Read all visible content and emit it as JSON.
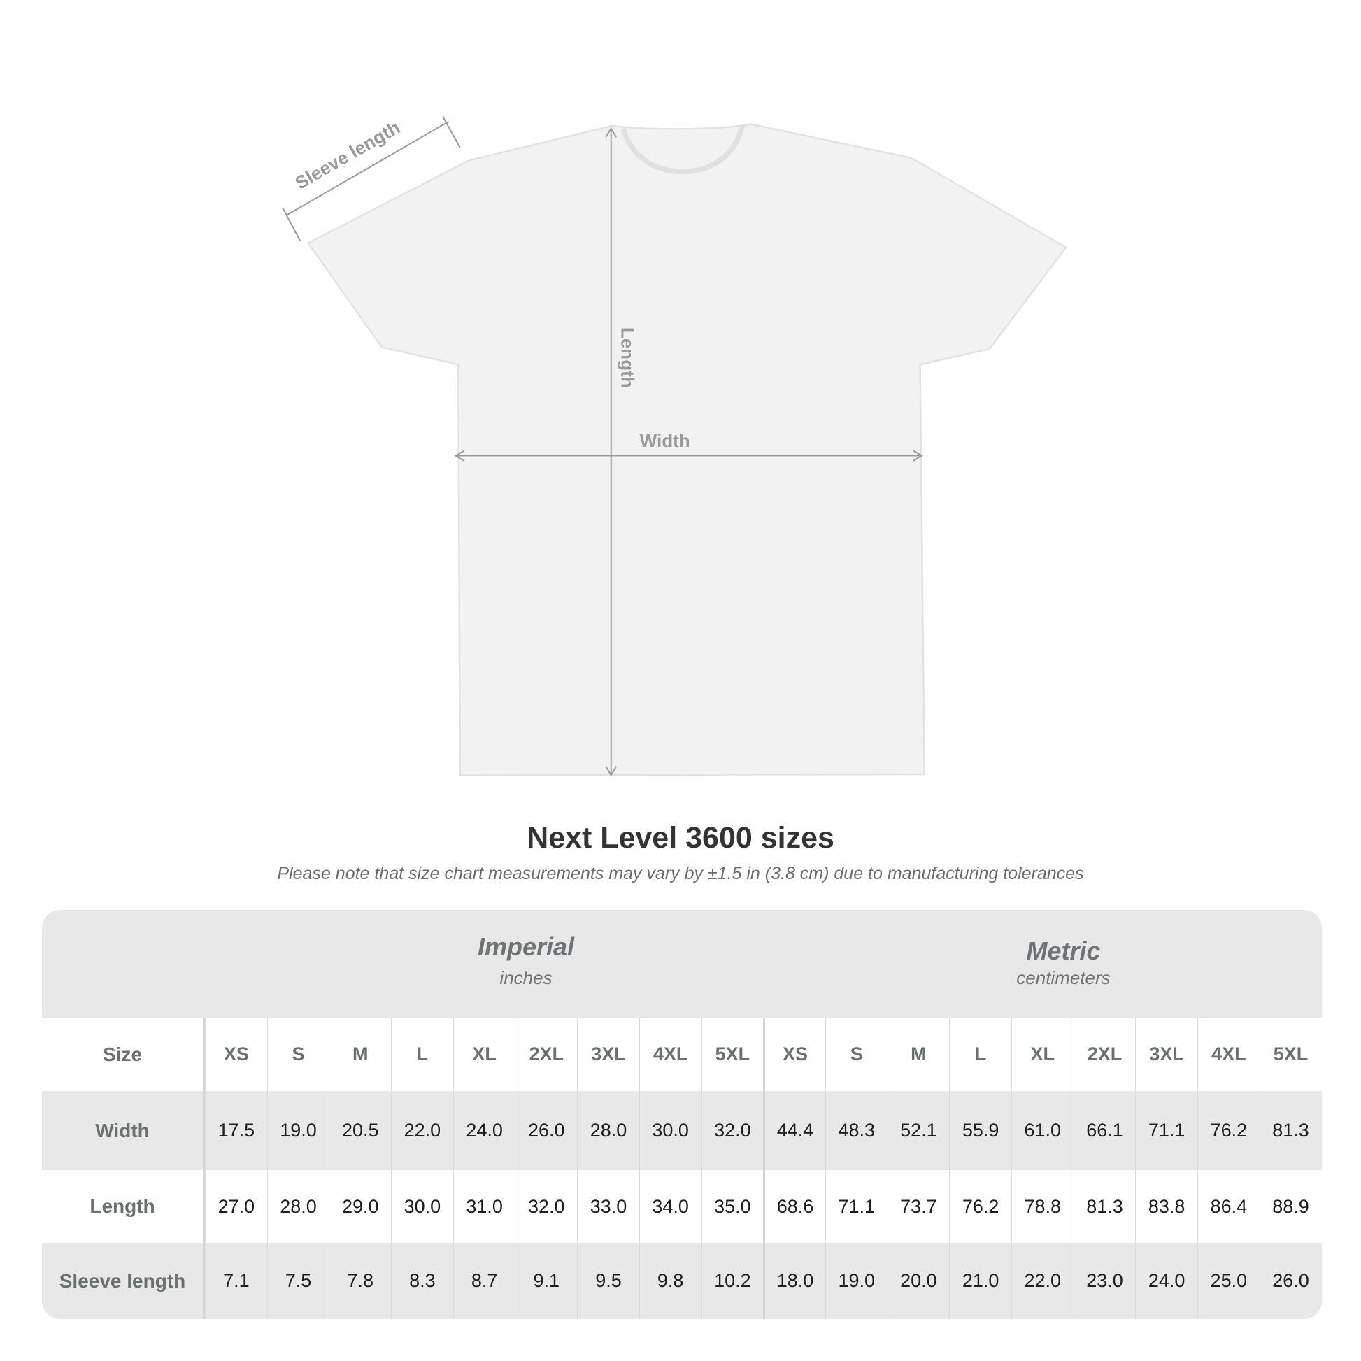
{
  "diagram": {
    "sleeve_label": "Sleeve length",
    "length_label": "Length",
    "width_label": "Width"
  },
  "title": "Next Level 3600 sizes",
  "note": "Please note that size chart measurements may vary by ±1.5 in (3.8 cm) due to manufacturing tolerances",
  "imperial": {
    "name": "Imperial",
    "unit": "inches"
  },
  "metric": {
    "name": "Metric",
    "unit": "centimeters"
  },
  "size_label": "Size",
  "sizes": [
    "XS",
    "S",
    "M",
    "L",
    "XL",
    "2XL",
    "3XL",
    "4XL",
    "5XL"
  ],
  "rows": [
    {
      "label": "Width",
      "imperial": [
        "17.5",
        "19.0",
        "20.5",
        "22.0",
        "24.0",
        "26.0",
        "28.0",
        "30.0",
        "32.0"
      ],
      "metric": [
        "44.4",
        "48.3",
        "52.1",
        "55.9",
        "61.0",
        "66.1",
        "71.1",
        "76.2",
        "81.3"
      ]
    },
    {
      "label": "Length",
      "imperial": [
        "27.0",
        "28.0",
        "29.0",
        "30.0",
        "31.0",
        "32.0",
        "33.0",
        "34.0",
        "35.0"
      ],
      "metric": [
        "68.6",
        "71.1",
        "73.7",
        "76.2",
        "78.8",
        "81.3",
        "83.8",
        "86.4",
        "88.9"
      ]
    },
    {
      "label": "Sleeve length",
      "imperial": [
        "7.1",
        "7.5",
        "7.8",
        "8.3",
        "8.7",
        "9.1",
        "9.5",
        "9.8",
        "10.2"
      ],
      "metric": [
        "18.0",
        "19.0",
        "20.0",
        "21.0",
        "22.0",
        "23.0",
        "24.0",
        "25.0",
        "26.0"
      ]
    }
  ],
  "colors": {
    "table_bg": "#e8e8e8",
    "label_gray": "#6e7475",
    "arrow": "#9a9a9a"
  }
}
